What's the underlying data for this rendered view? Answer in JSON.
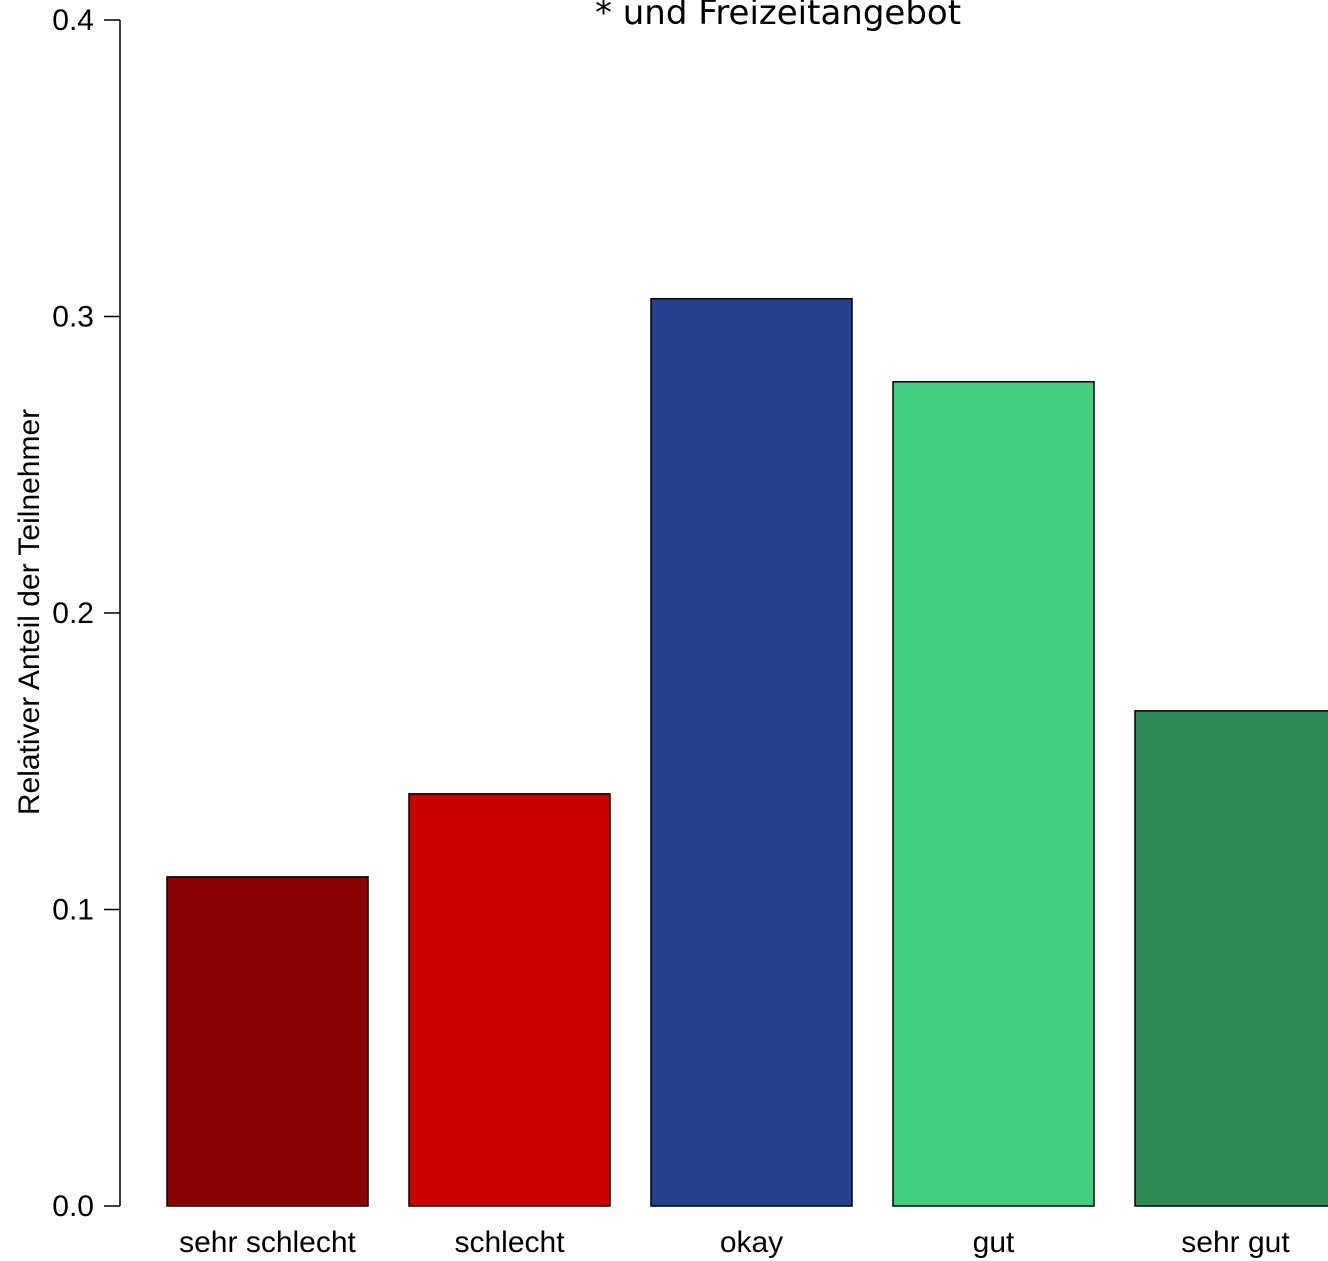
{
  "chart_data": {
    "type": "bar",
    "title": "* und Freizeitangebot",
    "xlabel": "",
    "ylabel": "Relativer Anteil der Teilnehmer",
    "ylim": [
      0,
      0.4
    ],
    "yticks": [
      "0.0",
      "0.1",
      "0.2",
      "0.3",
      "0.4"
    ],
    "categories": [
      "sehr schlecht",
      "schlecht",
      "okay",
      "gut",
      "sehr gut"
    ],
    "values": [
      0.111,
      0.139,
      0.306,
      0.278,
      0.167
    ],
    "colors": [
      "#8B0000",
      "#CC0000",
      "#27408B",
      "#43CD80",
      "#2E8B57"
    ],
    "grid": false,
    "legend": "none"
  }
}
